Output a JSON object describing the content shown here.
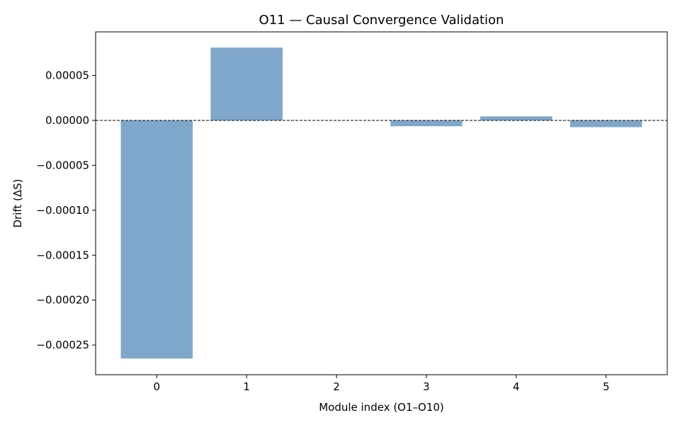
{
  "chart_data": {
    "type": "bar",
    "title": "O11 — Causal Convergence Validation",
    "xlabel": "Module index (O1–O10)",
    "ylabel": "Drift (ΔS)",
    "categories": [
      "0",
      "1",
      "2",
      "3",
      "4",
      "5"
    ],
    "values": [
      -0.000265,
      8.1e-05,
      0.0,
      -6.5e-06,
      4.5e-06,
      -7.5e-06
    ],
    "ylim": [
      -0.000283,
      9.85e-05
    ],
    "yticks": [
      5e-05,
      0.0,
      -5e-05,
      -0.0001,
      -0.00015,
      -0.0002,
      -0.00025
    ],
    "ytick_labels": [
      "0.00005",
      "0.00000",
      "−0.00005",
      "−0.00010",
      "−0.00015",
      "−0.00020",
      "−0.00025"
    ],
    "xlim": [
      -0.68,
      5.68
    ],
    "reference_line": {
      "y": 0,
      "style": "dashed",
      "color": "#000000"
    },
    "bar_color": "#7fa7cb",
    "grid": false
  }
}
